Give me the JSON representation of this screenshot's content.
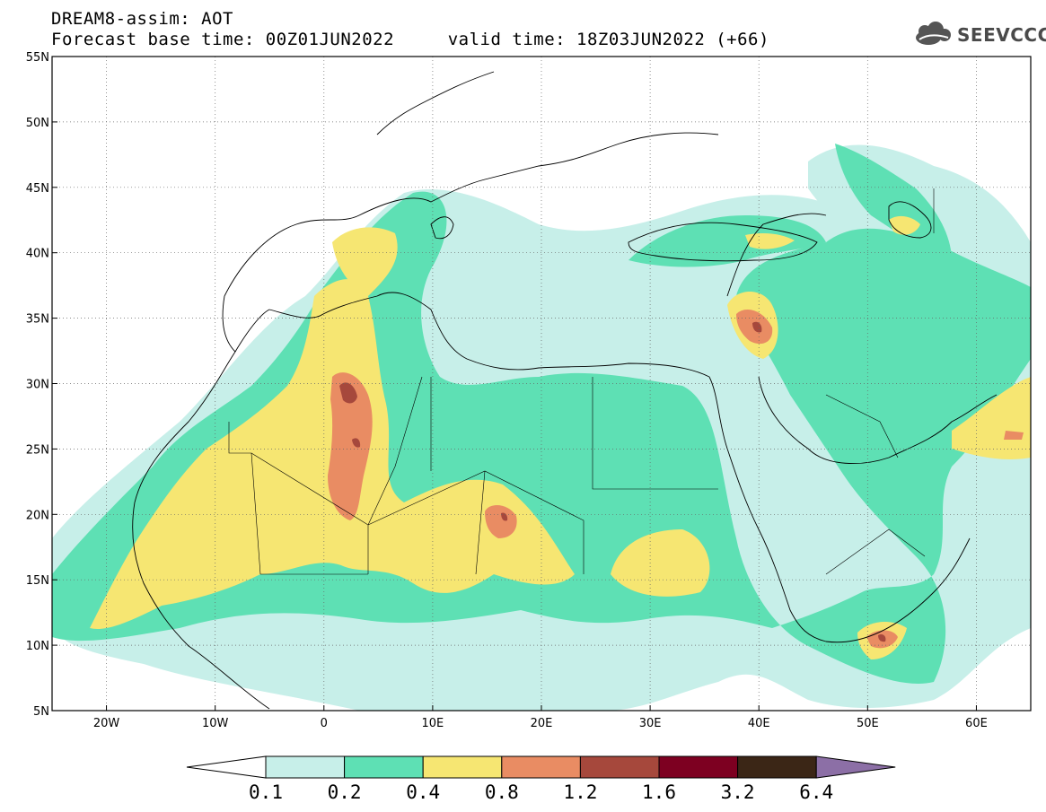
{
  "header": {
    "line1": "DREAM8-assim: AOT",
    "line2": "Forecast base time: 00Z01JUN2022     valid time: 18Z03JUN2022 (+66)"
  },
  "logo": {
    "text": "SEEVCCC",
    "icon": "cloud-icon"
  },
  "map": {
    "lon_range": [
      -25,
      65
    ],
    "lat_range": [
      5,
      55
    ],
    "lon_ticks": [
      "20W",
      "10W",
      "0",
      "10E",
      "20E",
      "30E",
      "40E",
      "50E",
      "60E"
    ],
    "lat_ticks": [
      "55N",
      "50N",
      "45N",
      "40N",
      "35N",
      "30N",
      "25N",
      "20N",
      "15N",
      "10N",
      "5N"
    ]
  },
  "colorbar": {
    "labels": [
      "0.1",
      "0.2",
      "0.4",
      "0.8",
      "1.2",
      "1.6",
      "3.2",
      "6.4"
    ],
    "colors": [
      "#ffffff",
      "#c7efe9",
      "#5ee0b4",
      "#f6e672",
      "#e98c63",
      "#a6483c",
      "#7d0021",
      "#3b2616",
      "#8c6fa6"
    ]
  },
  "colors": {
    "level1": "#c7efe9",
    "level2": "#5ee0b4",
    "level3": "#f6e672",
    "level4": "#e98c63",
    "level5": "#a6483c"
  }
}
